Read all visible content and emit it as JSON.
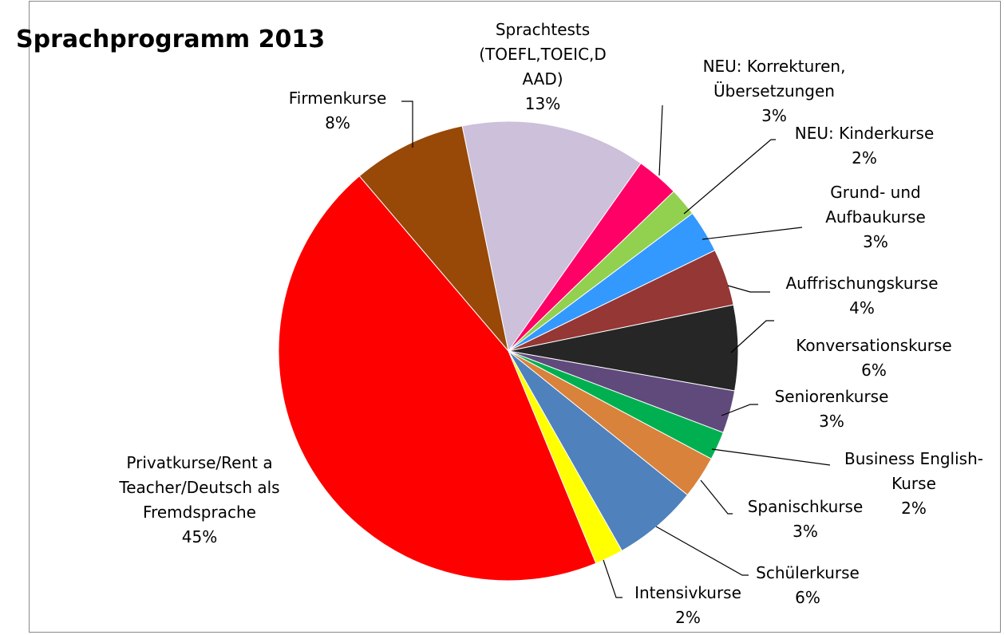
{
  "chart_data": {
    "type": "pie",
    "title": "Sprachprogramm 2013",
    "categories": [
      "Sprachtests (TOEFL,TOEIC,DAAD)",
      "NEU: Korrekturen, Übersetzungen",
      "NEU: Kinderkurse",
      "Grund- und Aufbaukurse",
      "Auffrischungskurse",
      "Konversationskurse",
      "Seniorenkurse",
      "Business English-Kurse",
      "Spanischkurse",
      "Schülerkurse",
      "Intensivkurse",
      "Privatkurse/Rent a Teacher/Deutsch als Fremdsprache",
      "Firmenkurse"
    ],
    "values": [
      13,
      3,
      2,
      3,
      4,
      6,
      3,
      2,
      3,
      6,
      2,
      45,
      8
    ],
    "value_labels": [
      "13%",
      "3%",
      "2%",
      "3%",
      "4%",
      "6%",
      "3%",
      "2%",
      "3%",
      "6%",
      "2%",
      "45%",
      "8%"
    ],
    "colors": [
      "#CCC0DA",
      "#FF0066",
      "#92D050",
      "#3399FF",
      "#953735",
      "#262626",
      "#604A7B",
      "#00B050",
      "#D9823B",
      "#4F81BD",
      "#FFFF00",
      "#FF0000",
      "#984807"
    ]
  }
}
